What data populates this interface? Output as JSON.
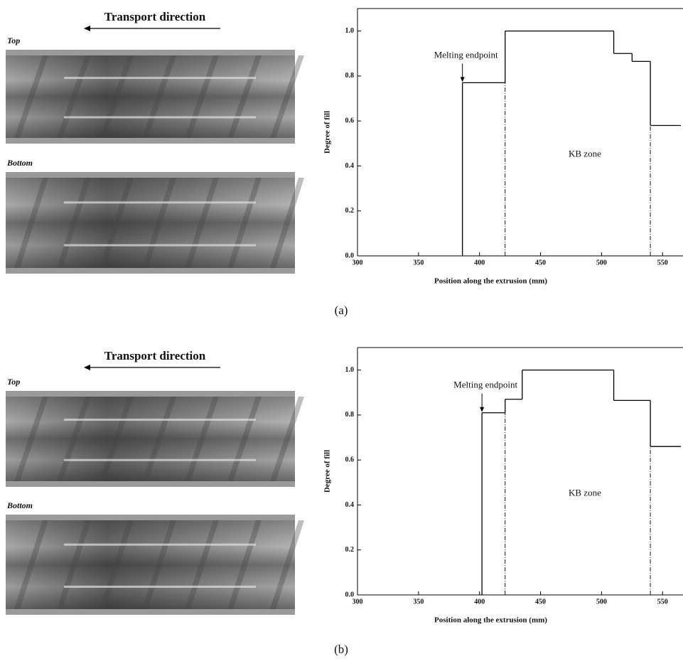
{
  "panels": [
    {
      "caption": "(a)",
      "direction": "Transport direction",
      "top": "Top",
      "bottom": "Bottom"
    },
    {
      "caption": "(b)",
      "direction": "Transport direction",
      "top": "Top",
      "bottom": "Bottom"
    }
  ],
  "chart_data": [
    {
      "type": "step",
      "xlabel": "Position along the extrusion (mm)",
      "ylabel": "Degree of fill",
      "x": [
        386,
        421,
        510,
        525,
        540
      ],
      "values": [
        0.77,
        1.0,
        0.9,
        0.865,
        0.58
      ],
      "color": "#000000",
      "vlines": [
        421,
        540
      ],
      "endpoint_label": "Melting endpoint",
      "zone_label": "KB zone",
      "xlim": [
        300,
        565
      ],
      "ylim": [
        0,
        1.1
      ],
      "xticks": [
        300,
        350,
        400,
        450,
        500,
        550
      ],
      "yticks": [
        {
          "value": 0,
          "label": "0.0"
        },
        0.2,
        0.4,
        0.6,
        0.8,
        {
          "value": 1,
          "label": "1.0"
        }
      ]
    },
    {
      "type": "step",
      "xlabel": "Position along the extrusion (mm)",
      "ylabel": "Degree of fill",
      "x": [
        402,
        421,
        435,
        510,
        540
      ],
      "values": [
        0.81,
        0.87,
        1.0,
        0.865,
        0.66
      ],
      "color": "#000000",
      "vlines": [
        421,
        540
      ],
      "endpoint_label": "Melting endpoint",
      "zone_label": "KB zone",
      "xlim": [
        300,
        565
      ],
      "ylim": [
        0,
        1.1
      ],
      "xticks": [
        300,
        350,
        400,
        450,
        500,
        550
      ],
      "yticks": [
        {
          "value": 0,
          "label": "0.0"
        },
        0.2,
        0.4,
        0.6,
        0.8,
        {
          "value": 1,
          "label": "1.0"
        }
      ]
    }
  ]
}
